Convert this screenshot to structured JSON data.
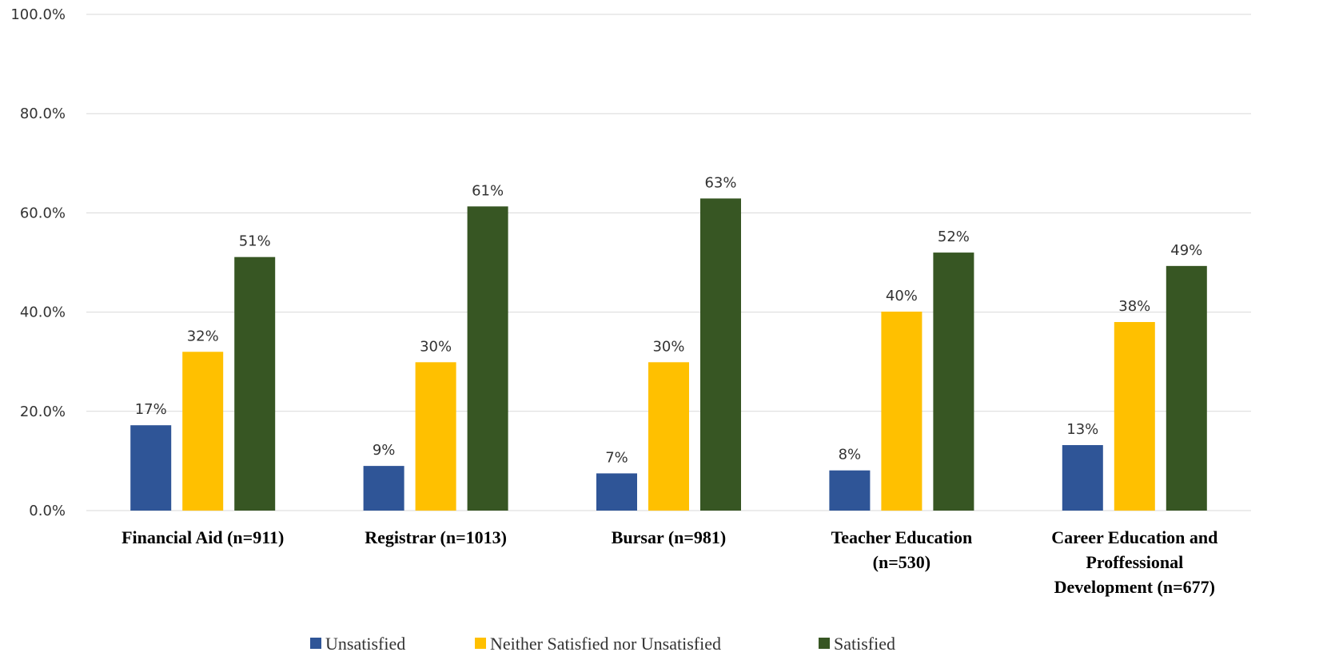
{
  "chart_data": {
    "type": "bar",
    "categories": [
      [
        "Financial Aid (n=911)"
      ],
      [
        "Registrar (n=1013)"
      ],
      [
        "Bursar (n=981)"
      ],
      [
        "Teacher Education",
        "(n=530)"
      ],
      [
        "Career Education and",
        "Proffessional",
        "Development (n=677)"
      ]
    ],
    "series": [
      {
        "name": "Unsatisfied",
        "color": "#2f5597",
        "values": [
          17.2,
          9.0,
          7.5,
          8.1,
          13.2
        ],
        "labels": [
          "17%",
          "9%",
          "7%",
          "8%",
          "13%"
        ]
      },
      {
        "name": "Neither Satisfied nor Unsatisfied",
        "color": "#ffc000",
        "values": [
          32.0,
          29.9,
          29.9,
          40.1,
          38.0
        ],
        "labels": [
          "32%",
          "30%",
          "30%",
          "40%",
          "38%"
        ]
      },
      {
        "name": "Satisfied",
        "color": "#375623",
        "values": [
          51.1,
          61.3,
          62.9,
          52.0,
          49.3
        ],
        "labels": [
          "51%",
          "61%",
          "63%",
          "52%",
          "49%"
        ]
      }
    ],
    "ylim": [
      0,
      100
    ],
    "yticks": [
      "0.0%",
      "20.0%",
      "40.0%",
      "60.0%",
      "80.0%",
      "100.0%"
    ],
    "ytick_values": [
      0,
      20,
      40,
      60,
      80,
      100
    ],
    "grid": true,
    "legend": "bottom"
  }
}
